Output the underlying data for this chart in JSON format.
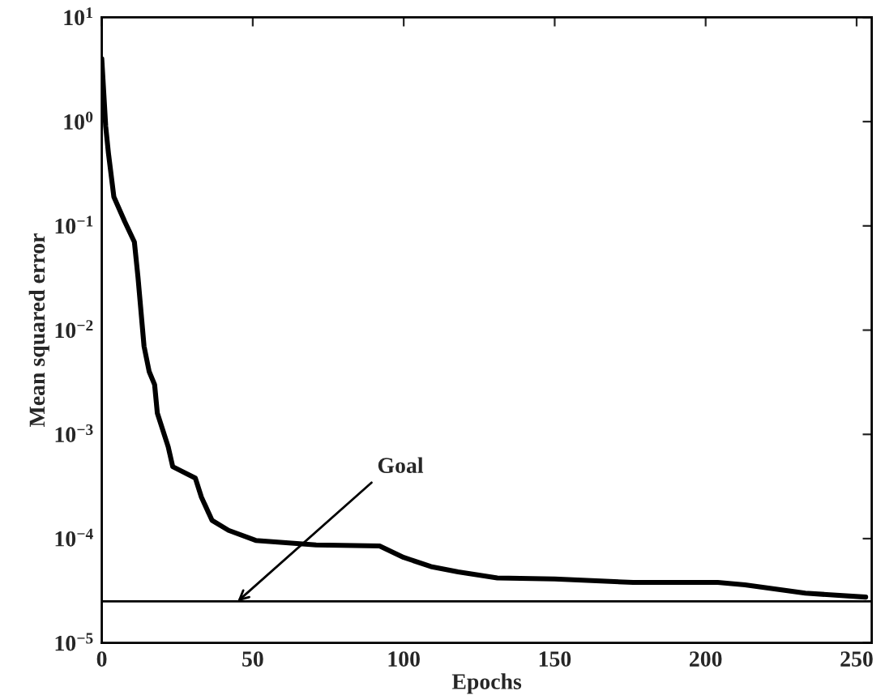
{
  "chart_data": {
    "type": "line",
    "xlabel": "Epochs",
    "ylabel": "Mean squared error",
    "log": "y",
    "grid": false,
    "legend": false,
    "xlim": [
      0,
      255
    ],
    "ylim": [
      1e-05,
      10
    ],
    "xticks": [
      0,
      50,
      100,
      150,
      200,
      250
    ],
    "yticks": [
      {
        "value": 1e-05,
        "label": "10$^{−5}$"
      },
      {
        "value": 0.0001,
        "label": "10$^{−4}$"
      },
      {
        "value": 0.001,
        "label": "10$^{−3}$"
      },
      {
        "value": 0.01,
        "label": "10$^{−2}$"
      },
      {
        "value": 0.1,
        "label": "10$^{−1}$"
      },
      {
        "value": 1,
        "label": "10$^{0}$"
      },
      {
        "value": 10,
        "label": "10$^{1}$"
      }
    ],
    "series": [
      {
        "color": "#000000",
        "x": [
          0,
          1.3,
          2.2,
          4,
          7.6,
          10.8,
          12,
          14,
          15.7,
          17.5,
          18.4,
          22,
          23.5,
          31,
          33,
          36.5,
          42,
          51,
          71,
          92,
          100,
          109,
          118,
          131,
          150,
          176,
          204,
          213,
          233,
          253
        ],
        "values": [
          4,
          0.9,
          0.5,
          0.19,
          0.11,
          0.07,
          0.032,
          0.007,
          0.004,
          0.003,
          0.0016,
          0.00076,
          0.00049,
          0.00038,
          0.00025,
          0.00015,
          0.00012,
          9.6e-05,
          8.7e-05,
          8.5e-05,
          6.6e-05,
          5.4e-05,
          4.8e-05,
          4.2e-05,
          4.1e-05,
          3.8e-05,
          3.8e-05,
          3.6e-05,
          3e-05,
          2.75e-05
        ]
      }
    ],
    "ref_lines": [
      {
        "axis": "y",
        "value": 2.5e-05,
        "color": "#000000",
        "line_style": "solid"
      }
    ],
    "annotations": [
      {
        "text": "Goal",
        "x": 45,
        "y": 2.5e-05
      }
    ]
  }
}
